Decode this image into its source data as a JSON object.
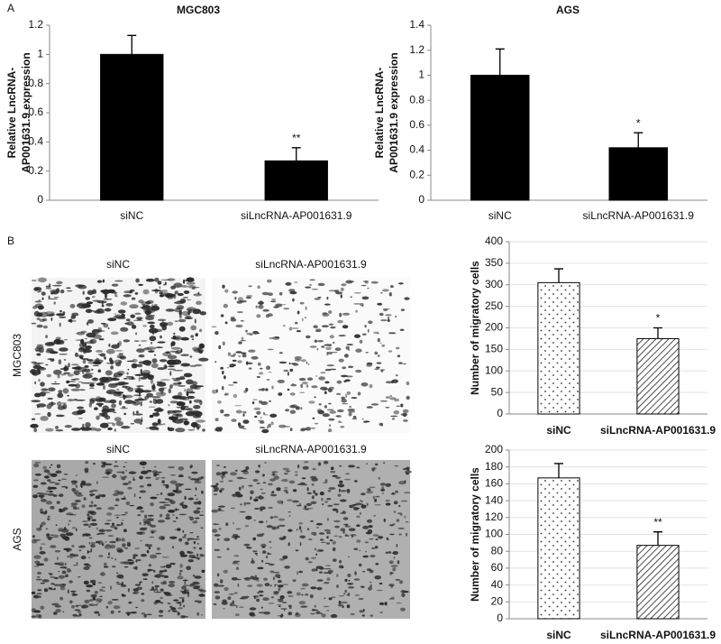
{
  "figure": {
    "panels": [
      "A",
      "B"
    ],
    "image_captions": [
      [
        "siNC",
        "siLncRNA-AP001631.9"
      ],
      [
        "siNC",
        "siLncRNA-AP001631.9"
      ]
    ],
    "row_labels": [
      "MGC803",
      "AGS"
    ]
  },
  "chart_data": [
    {
      "type": "bar",
      "title": "MGC803",
      "ylabel": [
        "Relative LncRNA-",
        "AP001631.9 expression"
      ],
      "categories": [
        "siNC",
        "siLncRNA-AP001631.9"
      ],
      "values": [
        1.0,
        0.27
      ],
      "errors": [
        0.13,
        0.09
      ],
      "color": "#000000",
      "ylim": [
        0,
        1.2
      ],
      "yticks": [
        0,
        0.2,
        0.4,
        0.6,
        0.8,
        1,
        1.2
      ],
      "grid": false,
      "annotations": [
        {
          "category": "siLncRNA-AP001631.9",
          "text": "**"
        }
      ]
    },
    {
      "type": "bar",
      "title": "AGS",
      "ylabel": [
        "Relative LncRNA-",
        "AP001631.9 expression"
      ],
      "categories": [
        "siNC",
        "siLncRNA-AP001631.9"
      ],
      "values": [
        1.0,
        0.42
      ],
      "errors": [
        0.21,
        0.12
      ],
      "color": "#000000",
      "ylim": [
        0,
        1.4
      ],
      "yticks": [
        0,
        0.2,
        0.4,
        0.6,
        0.8,
        1,
        1.2,
        1.4
      ],
      "grid": false,
      "annotations": [
        {
          "category": "siLncRNA-AP001631.9",
          "text": "*"
        }
      ]
    },
    {
      "type": "bar",
      "ylabel": [
        "Number of migratory cells"
      ],
      "categories": [
        "siNC",
        "siLncRNA-AP001631.9"
      ],
      "values": [
        305,
        175
      ],
      "errors": [
        32,
        25
      ],
      "fills": [
        "dots",
        "hatch"
      ],
      "ylim": [
        0,
        400
      ],
      "yticks": [
        0,
        50,
        100,
        150,
        200,
        250,
        300,
        350,
        400
      ],
      "grid": true,
      "annotations": [
        {
          "category": "siLncRNA-AP001631.9",
          "text": "*"
        }
      ]
    },
    {
      "type": "bar",
      "ylabel": [
        "Number of migratory cells"
      ],
      "categories": [
        "siNC",
        "siLncRNA-AP001631.9"
      ],
      "values": [
        167,
        87
      ],
      "errors": [
        17,
        16
      ],
      "fills": [
        "dots",
        "hatch"
      ],
      "ylim": [
        0,
        200
      ],
      "yticks": [
        0,
        20,
        40,
        60,
        80,
        100,
        120,
        140,
        160,
        180,
        200
      ],
      "grid": true,
      "annotations": [
        {
          "category": "siLncRNA-AP001631.9",
          "text": "**"
        }
      ]
    }
  ]
}
